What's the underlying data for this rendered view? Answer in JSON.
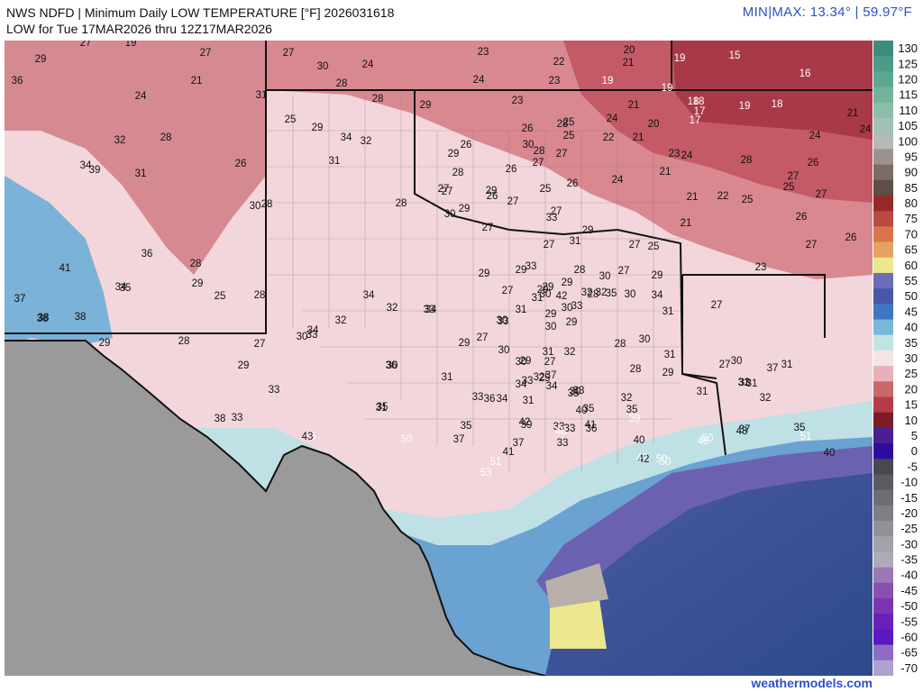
{
  "header": {
    "title": "NWS NDFD | Minimum Daily LOW TEMPERATURE [°F]  2026031618",
    "subtitle": "LOW for Tue 17MAR2026 thru 12Z17MAR2026",
    "minmax_label": "MIN|MAX:  13.34°  | 59.97°F"
  },
  "footer": {
    "credit": "weathermodels.com"
  },
  "legend": {
    "ticks": [
      "130",
      "125",
      "120",
      "115",
      "110",
      "105",
      "100",
      "95",
      "90",
      "85",
      "80",
      "75",
      "70",
      "65",
      "60",
      "55",
      "50",
      "45",
      "40",
      "35",
      "30",
      "25",
      "20",
      "15",
      "10",
      "5",
      "0",
      "-5",
      "-10",
      "-15",
      "-20",
      "-25",
      "-30",
      "-35",
      "-40",
      "-45",
      "-50",
      "-55",
      "-60",
      "-65",
      "-70"
    ],
    "colors": [
      "#3e8c80",
      "#4a9c88",
      "#5aa892",
      "#73b39c",
      "#8cbda8",
      "#a2c0b5",
      "#b4bab4",
      "#9c9290",
      "#7c6c68",
      "#5e4e48",
      "#942a2a",
      "#b84a40",
      "#d8764a",
      "#e4a460",
      "#ece88c",
      "#6c6cb8",
      "#4858a8",
      "#3c78c4",
      "#7ab8d8",
      "#c0e4e4",
      "#f4e4e8",
      "#e8b0b8",
      "#c86868",
      "#b43c48",
      "#7c1c28",
      "#4a2090",
      "#2e0ca0",
      "#484850",
      "#5a5a60",
      "#6c6c72",
      "#7e7e84",
      "#909096",
      "#a2a2a8",
      "#b0aab8",
      "#9c78b4",
      "#8a50b0",
      "#7c34b0",
      "#6a20b8",
      "#5a18c0",
      "#8c6cc8",
      "#b0a0d0"
    ]
  },
  "map_labels": [
    {
      "t": "27",
      "c": "k"
    },
    {
      "t": "19",
      "c": "k"
    },
    {
      "t": "27",
      "c": "k"
    },
    {
      "t": "27",
      "c": "k"
    },
    {
      "t": "23",
      "c": "k"
    },
    {
      "t": "20",
      "c": "k"
    },
    {
      "t": "29",
      "c": "k"
    },
    {
      "t": "30",
      "c": "k"
    },
    {
      "t": "24",
      "c": "k"
    },
    {
      "t": "22",
      "c": "k"
    },
    {
      "t": "21",
      "c": "k"
    },
    {
      "t": "19",
      "c": "w"
    },
    {
      "t": "15",
      "c": "w"
    },
    {
      "t": "16",
      "c": "w"
    },
    {
      "t": "36",
      "c": "k"
    },
    {
      "t": "21",
      "c": "k"
    },
    {
      "t": "28",
      "c": "k"
    },
    {
      "t": "24",
      "c": "k"
    },
    {
      "t": "23",
      "c": "k"
    },
    {
      "t": "19",
      "c": "w"
    },
    {
      "t": "19",
      "c": "w"
    },
    {
      "t": "24",
      "c": "k"
    },
    {
      "t": "31",
      "c": "k"
    },
    {
      "t": "28",
      "c": "k"
    },
    {
      "t": "29",
      "c": "k"
    },
    {
      "t": "23",
      "c": "k"
    },
    {
      "t": "21",
      "c": "k"
    },
    {
      "t": "18",
      "c": "w"
    },
    {
      "t": "18",
      "c": "w"
    },
    {
      "t": "19",
      "c": "w"
    },
    {
      "t": "18",
      "c": "w"
    },
    {
      "t": "17",
      "c": "w"
    },
    {
      "t": "17",
      "c": "w"
    },
    {
      "t": "21",
      "c": "k"
    },
    {
      "t": "25",
      "c": "k"
    },
    {
      "t": "29",
      "c": "k"
    },
    {
      "t": "26",
      "c": "k"
    },
    {
      "t": "28",
      "c": "k"
    },
    {
      "t": "25",
      "c": "k"
    },
    {
      "t": "24",
      "c": "k"
    },
    {
      "t": "20",
      "c": "k"
    },
    {
      "t": "24",
      "c": "k"
    },
    {
      "t": "32",
      "c": "k"
    },
    {
      "t": "28",
      "c": "k"
    },
    {
      "t": "34",
      "c": "k"
    },
    {
      "t": "32",
      "c": "k"
    },
    {
      "t": "26",
      "c": "k"
    },
    {
      "t": "30",
      "c": "k"
    },
    {
      "t": "28",
      "c": "k"
    },
    {
      "t": "25",
      "c": "k"
    },
    {
      "t": "22",
      "c": "k"
    },
    {
      "t": "21",
      "c": "k"
    },
    {
      "t": "24",
      "c": "k"
    },
    {
      "t": "29",
      "c": "k"
    },
    {
      "t": "34",
      "c": "k"
    },
    {
      "t": "39",
      "c": "k"
    },
    {
      "t": "31",
      "c": "k"
    },
    {
      "t": "26",
      "c": "k"
    },
    {
      "t": "31",
      "c": "k"
    },
    {
      "t": "26",
      "c": "k"
    },
    {
      "t": "27",
      "c": "k"
    },
    {
      "t": "28",
      "c": "k"
    },
    {
      "t": "27",
      "c": "k"
    },
    {
      "t": "23",
      "c": "k"
    },
    {
      "t": "21",
      "c": "k"
    },
    {
      "t": "24",
      "c": "k"
    },
    {
      "t": "28",
      "c": "k"
    },
    {
      "t": "26",
      "c": "k"
    },
    {
      "t": "24",
      "c": "k"
    },
    {
      "t": "27",
      "c": "k"
    },
    {
      "t": "27",
      "c": "k"
    },
    {
      "t": "27",
      "c": "k"
    },
    {
      "t": "29",
      "c": "k"
    },
    {
      "t": "27",
      "c": "k"
    },
    {
      "t": "25",
      "c": "k"
    },
    {
      "t": "26",
      "c": "k"
    },
    {
      "t": "26",
      "c": "k"
    },
    {
      "t": "25",
      "c": "k"
    },
    {
      "t": "27",
      "c": "k"
    },
    {
      "t": "33",
      "c": "k"
    },
    {
      "t": "28",
      "c": "k"
    },
    {
      "t": "29",
      "c": "k"
    },
    {
      "t": "27",
      "c": "k"
    },
    {
      "t": "21",
      "c": "k"
    },
    {
      "t": "22",
      "c": "k"
    },
    {
      "t": "25",
      "c": "k"
    },
    {
      "t": "26",
      "c": "k"
    },
    {
      "t": "30",
      "c": "k"
    },
    {
      "t": "27",
      "c": "k"
    },
    {
      "t": "30",
      "c": "k"
    },
    {
      "t": "28",
      "c": "k"
    },
    {
      "t": "21",
      "c": "k"
    },
    {
      "t": "29",
      "c": "k"
    },
    {
      "t": "31",
      "c": "k"
    },
    {
      "t": "27",
      "c": "k"
    },
    {
      "t": "25",
      "c": "k"
    },
    {
      "t": "27",
      "c": "k"
    },
    {
      "t": "26",
      "c": "k"
    },
    {
      "t": "27",
      "c": "k"
    },
    {
      "t": "36",
      "c": "k"
    },
    {
      "t": "23",
      "c": "k"
    },
    {
      "t": "41",
      "c": "k"
    },
    {
      "t": "28",
      "c": "k"
    },
    {
      "t": "29",
      "c": "k"
    },
    {
      "t": "33",
      "c": "k"
    },
    {
      "t": "29",
      "c": "k"
    },
    {
      "t": "29",
      "c": "k"
    },
    {
      "t": "30",
      "c": "k"
    },
    {
      "t": "27",
      "c": "k"
    },
    {
      "t": "34",
      "c": "k"
    },
    {
      "t": "35",
      "c": "k"
    },
    {
      "t": "25",
      "c": "k"
    },
    {
      "t": "28",
      "c": "k"
    },
    {
      "t": "37",
      "c": "k"
    },
    {
      "t": "29",
      "c": "k"
    },
    {
      "t": "29",
      "c": "k"
    },
    {
      "t": "34",
      "c": "k"
    },
    {
      "t": "32",
      "c": "k"
    },
    {
      "t": "32",
      "c": "k"
    },
    {
      "t": "29",
      "c": "k"
    },
    {
      "t": "28",
      "c": "k"
    },
    {
      "t": "28",
      "c": "k"
    },
    {
      "t": "29",
      "c": "k"
    },
    {
      "t": "27",
      "c": "k"
    },
    {
      "t": "30",
      "c": "k"
    },
    {
      "t": "32",
      "c": "k"
    },
    {
      "t": "34",
      "c": "k"
    },
    {
      "t": "33",
      "c": "k"
    },
    {
      "t": "34",
      "c": "k"
    },
    {
      "t": "38",
      "c": "k"
    },
    {
      "t": "27",
      "c": "k"
    },
    {
      "t": "38",
      "c": "k"
    },
    {
      "t": "38",
      "c": "k"
    },
    {
      "t": "30",
      "c": "k"
    },
    {
      "t": "31",
      "c": "k"
    },
    {
      "t": "30",
      "c": "k"
    },
    {
      "t": "29",
      "c": "k"
    },
    {
      "t": "28",
      "c": "k"
    },
    {
      "t": "34",
      "c": "k"
    },
    {
      "t": "33",
      "c": "k"
    },
    {
      "t": "30",
      "c": "k"
    },
    {
      "t": "32",
      "c": "k"
    },
    {
      "t": "30",
      "c": "k"
    },
    {
      "t": "31",
      "c": "k"
    },
    {
      "t": "29",
      "c": "k"
    },
    {
      "t": "42",
      "c": "k"
    },
    {
      "t": "35",
      "c": "k"
    },
    {
      "t": "31",
      "c": "k"
    },
    {
      "t": "32",
      "c": "k"
    },
    {
      "t": "29",
      "c": "k"
    },
    {
      "t": "30",
      "c": "k"
    },
    {
      "t": "27",
      "c": "k"
    },
    {
      "t": "29",
      "c": "k"
    },
    {
      "t": "30",
      "c": "k"
    },
    {
      "t": "27",
      "c": "k"
    },
    {
      "t": "29",
      "c": "k"
    },
    {
      "t": "28",
      "c": "k"
    },
    {
      "t": "27",
      "c": "k"
    },
    {
      "t": "30",
      "c": "k"
    },
    {
      "t": "33",
      "c": "k"
    },
    {
      "t": "33",
      "c": "k"
    },
    {
      "t": "31",
      "c": "k"
    },
    {
      "t": "30",
      "c": "k"
    },
    {
      "t": "37",
      "c": "k"
    },
    {
      "t": "31",
      "c": "k"
    },
    {
      "t": "29",
      "c": "k"
    },
    {
      "t": "29",
      "c": "k"
    },
    {
      "t": "28",
      "c": "k"
    },
    {
      "t": "27",
      "c": "k"
    },
    {
      "t": "31",
      "c": "k"
    },
    {
      "t": "31",
      "c": "k"
    },
    {
      "t": "30",
      "c": "k"
    },
    {
      "t": "34",
      "c": "k"
    },
    {
      "t": "30",
      "c": "k"
    },
    {
      "t": "25",
      "c": "k"
    },
    {
      "t": "33",
      "c": "k"
    },
    {
      "t": "32",
      "c": "k"
    },
    {
      "t": "33",
      "c": "k"
    },
    {
      "t": "31",
      "c": "k"
    },
    {
      "t": "30",
      "c": "k"
    },
    {
      "t": "33",
      "c": "k"
    },
    {
      "t": "31",
      "c": "k"
    },
    {
      "t": "34",
      "c": "k"
    },
    {
      "t": "33",
      "c": "k"
    },
    {
      "t": "31",
      "c": "k"
    },
    {
      "t": "32",
      "c": "k"
    },
    {
      "t": "33",
      "c": "k"
    },
    {
      "t": "32",
      "c": "k"
    },
    {
      "t": "36",
      "c": "k"
    },
    {
      "t": "38",
      "c": "k"
    },
    {
      "t": "33",
      "c": "k"
    },
    {
      "t": "31",
      "c": "k"
    },
    {
      "t": "35",
      "c": "k"
    },
    {
      "t": "31",
      "c": "k"
    },
    {
      "t": "34",
      "c": "k"
    },
    {
      "t": "36",
      "c": "k"
    },
    {
      "t": "35",
      "c": "k"
    },
    {
      "t": "35",
      "c": "k"
    },
    {
      "t": "35",
      "c": "k"
    },
    {
      "t": "37",
      "c": "k"
    },
    {
      "t": "40",
      "c": "k"
    },
    {
      "t": "33",
      "c": "k"
    },
    {
      "t": "37",
      "c": "k"
    },
    {
      "t": "33",
      "c": "k"
    },
    {
      "t": "33",
      "c": "k"
    },
    {
      "t": "36",
      "c": "k"
    },
    {
      "t": "37",
      "c": "k"
    },
    {
      "t": "35",
      "c": "k"
    },
    {
      "t": "46",
      "c": "w"
    },
    {
      "t": "39",
      "c": "w"
    },
    {
      "t": "35",
      "c": "k"
    },
    {
      "t": "37",
      "c": "k"
    },
    {
      "t": "40",
      "c": "k"
    },
    {
      "t": "39",
      "c": "k"
    },
    {
      "t": "42",
      "c": "k"
    },
    {
      "t": "48",
      "c": "w"
    },
    {
      "t": "41",
      "c": "k"
    },
    {
      "t": "43",
      "c": "k"
    },
    {
      "t": "51",
      "c": "w"
    },
    {
      "t": "50",
      "c": "w"
    },
    {
      "t": "45",
      "c": "w"
    },
    {
      "t": "43",
      "c": "k"
    },
    {
      "t": "41",
      "c": "k"
    },
    {
      "t": "42",
      "c": "k"
    },
    {
      "t": "47",
      "c": "w"
    },
    {
      "t": "50",
      "c": "w"
    },
    {
      "t": "50",
      "c": "w"
    },
    {
      "t": "50",
      "c": "w"
    },
    {
      "t": "51",
      "c": "w"
    },
    {
      "t": "53",
      "c": "w"
    },
    {
      "t": "40",
      "c": "k"
    }
  ]
}
